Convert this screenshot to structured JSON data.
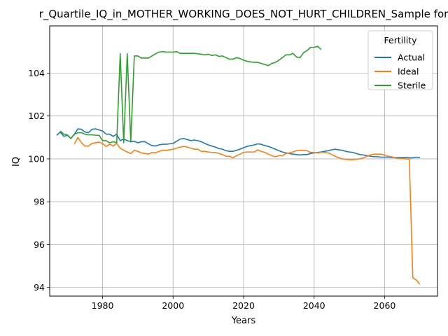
{
  "chart_data": {
    "type": "line",
    "title": "r_Quartile_IQ_in_MOTHER_WORKING_DOES_NOT_HURT_CHILDREN_Sample for",
    "xlabel": "Years",
    "ylabel": "IQ",
    "xlim": [
      1965,
      2075
    ],
    "ylim": [
      93.6,
      106.2
    ],
    "xticks": [
      1980,
      2000,
      2020,
      2040,
      2060
    ],
    "yticks": [
      94,
      96,
      98,
      100,
      102,
      104
    ],
    "grid": true,
    "legend": {
      "title": "Fertility",
      "placement": "top-right"
    },
    "series": [
      {
        "name": "Actual",
        "color": "#1f77b4",
        "x": [
          1967,
          1968,
          1969,
          1970,
          1971,
          1972,
          1973,
          1974,
          1975,
          1976,
          1977,
          1978,
          1979,
          1980,
          1981,
          1982,
          1983,
          1984,
          1985,
          1986,
          1987,
          1988,
          1989,
          1990,
          1991,
          1992,
          1993,
          1994,
          1995,
          1996,
          1997,
          1998,
          1999,
          2000,
          2001,
          2002,
          2003,
          2004,
          2005,
          2006,
          2007,
          2008,
          2009,
          2010,
          2011,
          2012,
          2013,
          2014,
          2015,
          2016,
          2017,
          2018,
          2019,
          2020,
          2021,
          2022,
          2023,
          2024,
          2025,
          2026,
          2027,
          2028,
          2029,
          2030,
          2031,
          2032,
          2033,
          2034,
          2035,
          2036,
          2037,
          2038,
          2039,
          2040,
          2041,
          2042,
          2043,
          2044,
          2045,
          2046,
          2047,
          2048,
          2049,
          2050,
          2051,
          2052,
          2053,
          2054,
          2055,
          2056,
          2057,
          2058,
          2059,
          2060,
          2061,
          2062,
          2063,
          2064,
          2065,
          2066,
          2067,
          2068,
          2069,
          2070
        ],
        "y": [
          101.1,
          101.25,
          101.05,
          101.1,
          100.95,
          101.15,
          101.4,
          101.38,
          101.25,
          101.22,
          101.38,
          101.4,
          101.35,
          101.3,
          101.15,
          101.15,
          101.05,
          101.15,
          100.85,
          100.92,
          100.85,
          100.8,
          100.82,
          100.75,
          100.8,
          100.8,
          100.7,
          100.62,
          100.6,
          100.65,
          100.68,
          100.68,
          100.7,
          100.72,
          100.82,
          100.92,
          100.95,
          100.9,
          100.85,
          100.88,
          100.85,
          100.8,
          100.72,
          100.65,
          100.6,
          100.55,
          100.48,
          100.45,
          100.38,
          100.35,
          100.35,
          100.4,
          100.45,
          100.52,
          100.58,
          100.62,
          100.65,
          100.7,
          100.68,
          100.62,
          100.58,
          100.52,
          100.45,
          100.38,
          100.32,
          100.28,
          100.25,
          100.22,
          100.2,
          100.18,
          100.2,
          100.2,
          100.25,
          100.28,
          100.3,
          100.32,
          100.35,
          100.38,
          100.42,
          100.45,
          100.42,
          100.4,
          100.35,
          100.32,
          100.3,
          100.25,
          100.2,
          100.18,
          100.15,
          100.12,
          100.1,
          100.1,
          100.08,
          100.08,
          100.08,
          100.07,
          100.06,
          100.06,
          100.06,
          100.07,
          100.05,
          100.05,
          100.08,
          100.06
        ]
      },
      {
        "name": "Ideal",
        "color": "#ff7f0e",
        "x": [
          1972,
          1973,
          1974,
          1975,
          1976,
          1977,
          1978,
          1979,
          1980,
          1981,
          1982,
          1983,
          1984,
          1985,
          1986,
          1987,
          1988,
          1989,
          1990,
          1991,
          1992,
          1993,
          1994,
          1995,
          1996,
          1997,
          1998,
          1999,
          2000,
          2001,
          2002,
          2003,
          2004,
          2005,
          2006,
          2007,
          2008,
          2009,
          2010,
          2011,
          2012,
          2013,
          2014,
          2015,
          2016,
          2017,
          2018,
          2019,
          2020,
          2021,
          2022,
          2023,
          2024,
          2025,
          2026,
          2027,
          2028,
          2029,
          2030,
          2031,
          2032,
          2033,
          2034,
          2035,
          2036,
          2037,
          2038,
          2039,
          2040,
          2041,
          2042,
          2043,
          2044,
          2045,
          2046,
          2047,
          2048,
          2049,
          2050,
          2051,
          2052,
          2053,
          2054,
          2055,
          2056,
          2057,
          2058,
          2059,
          2060,
          2061,
          2062,
          2063,
          2064,
          2065,
          2066,
          2067,
          2068,
          2069,
          2070
        ],
        "y": [
          100.7,
          101.0,
          100.75,
          100.6,
          100.6,
          100.72,
          100.75,
          100.78,
          100.72,
          100.58,
          100.68,
          100.6,
          100.72,
          100.5,
          100.4,
          100.32,
          100.25,
          100.4,
          100.35,
          100.28,
          100.25,
          100.22,
          100.3,
          100.28,
          100.35,
          100.4,
          100.4,
          100.42,
          100.45,
          100.5,
          100.55,
          100.58,
          100.55,
          100.5,
          100.45,
          100.45,
          100.35,
          100.35,
          100.32,
          100.3,
          100.3,
          100.25,
          100.2,
          100.12,
          100.12,
          100.05,
          100.15,
          100.22,
          100.3,
          100.32,
          100.32,
          100.32,
          100.42,
          100.35,
          100.3,
          100.22,
          100.15,
          100.1,
          100.15,
          100.15,
          100.25,
          100.28,
          100.32,
          100.38,
          100.4,
          100.4,
          100.38,
          100.3,
          100.3,
          100.28,
          100.3,
          100.3,
          100.28,
          100.2,
          100.12,
          100.05,
          100.0,
          99.98,
          99.96,
          99.96,
          99.98,
          100.0,
          100.05,
          100.12,
          100.18,
          100.22,
          100.22,
          100.22,
          100.18,
          100.12,
          100.1,
          100.05,
          100.02,
          100.02,
          100.0,
          99.98,
          94.45,
          94.35,
          94.15
        ]
      },
      {
        "name": "Sterile",
        "color": "#2ca02c",
        "x": [
          1968,
          1969,
          1970,
          1971,
          1972,
          1973,
          1974,
          1975,
          1976,
          1977,
          1978,
          1979,
          1980,
          1981,
          1982,
          1983,
          1984,
          1985,
          1986,
          1987,
          1988,
          1989,
          1990,
          1991,
          1992,
          1993,
          1994,
          1995,
          1996,
          1997,
          1998,
          1999,
          2000,
          2001,
          2002,
          2003,
          2004,
          2005,
          2006,
          2007,
          2008,
          2009,
          2010,
          2011,
          2012,
          2013,
          2014,
          2015,
          2016,
          2017,
          2018,
          2019,
          2020,
          2021,
          2022,
          2023,
          2024,
          2025,
          2026,
          2027,
          2028,
          2029,
          2030,
          2031,
          2032,
          2033,
          2034,
          2035,
          2036,
          2037,
          2038,
          2039,
          2040,
          2041,
          2042
        ],
        "y": [
          101.3,
          101.15,
          101.12,
          100.95,
          101.15,
          101.22,
          101.22,
          101.15,
          101.12,
          101.12,
          101.1,
          101.1,
          100.85,
          100.85,
          100.75,
          100.8,
          100.75,
          104.9,
          100.75,
          104.9,
          100.8,
          104.8,
          104.8,
          104.7,
          104.7,
          104.7,
          104.8,
          104.9,
          104.98,
          105.0,
          104.98,
          104.98,
          104.98,
          105.0,
          104.92,
          104.92,
          104.92,
          104.92,
          104.92,
          104.9,
          104.88,
          104.85,
          104.88,
          104.82,
          104.85,
          104.78,
          104.8,
          104.72,
          104.65,
          104.65,
          104.72,
          104.68,
          104.6,
          104.55,
          104.52,
          104.5,
          104.5,
          104.45,
          104.4,
          104.35,
          104.45,
          104.5,
          104.6,
          104.72,
          104.85,
          104.85,
          104.92,
          104.75,
          104.72,
          104.95,
          105.05,
          105.2,
          105.2,
          105.25,
          105.1
        ]
      }
    ]
  }
}
